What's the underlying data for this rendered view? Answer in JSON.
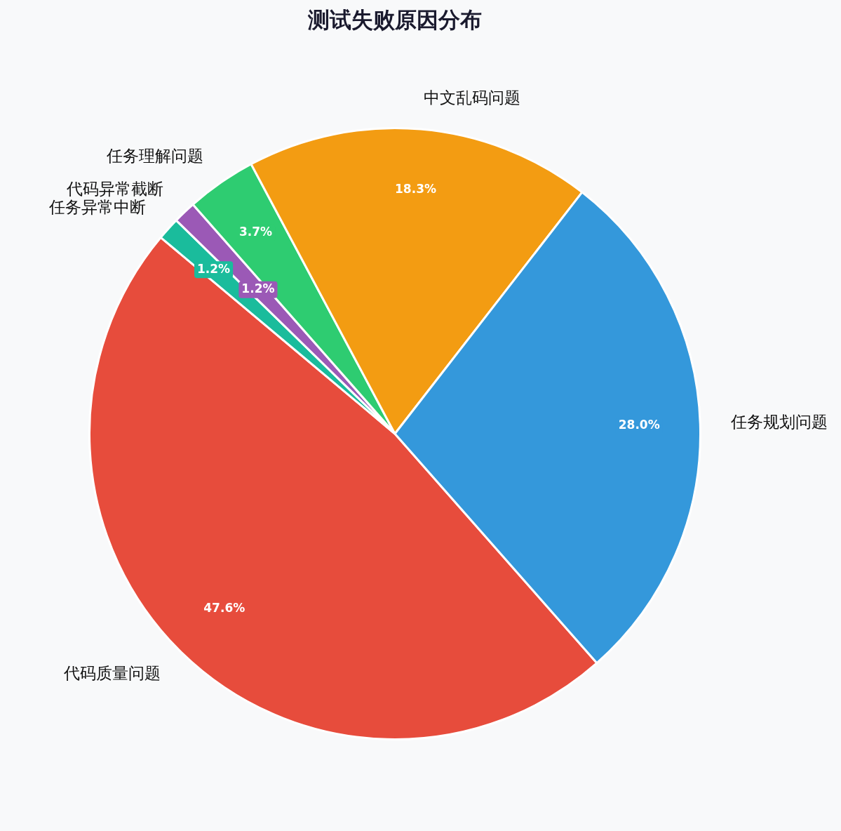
{
  "chart_data": {
    "type": "pie",
    "title": "测试失败原因分布",
    "categories": [
      "代码质量问题",
      "任务异常中断",
      "代码异常截断",
      "任务理解问题",
      "中文乱码问题",
      "任务规划问题"
    ],
    "values": [
      47.6,
      1.2,
      1.2,
      3.7,
      18.3,
      28.0
    ],
    "colors": [
      "#e74c3c",
      "#1abc9c",
      "#9b59b6",
      "#2ecc71",
      "#f39c12",
      "#3498db"
    ],
    "value_labels": [
      "47.6%",
      "1.2%",
      "1.2%",
      "3.7%",
      "18.3%",
      "28.0%"
    ]
  }
}
